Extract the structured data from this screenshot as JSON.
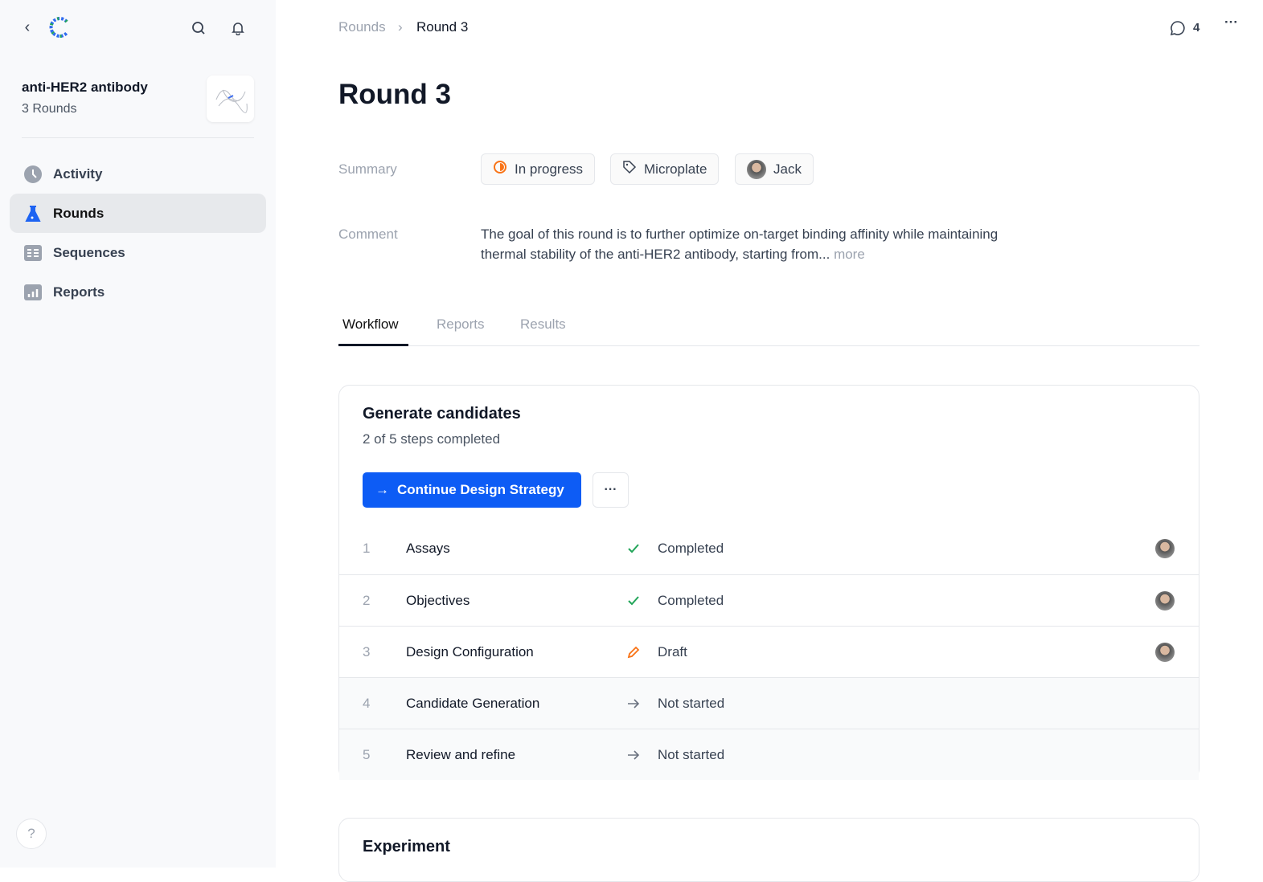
{
  "sidebar": {
    "project_title": "anti-HER2 antibody",
    "project_sub": "3 Rounds",
    "items": [
      {
        "label": "Activity",
        "icon": "clock-icon"
      },
      {
        "label": "Rounds",
        "icon": "flask-icon",
        "active": true
      },
      {
        "label": "Sequences",
        "icon": "table-icon"
      },
      {
        "label": "Reports",
        "icon": "bar-chart-icon"
      }
    ],
    "help": "?"
  },
  "breadcrumb": {
    "parent": "Rounds",
    "current": "Round 3"
  },
  "comments_count": "4",
  "title": "Round 3",
  "summary": {
    "label": "Summary",
    "status": "In progress",
    "tag": "Microplate",
    "owner": "Jack",
    "status_color": "#f97316"
  },
  "comment": {
    "label": "Comment",
    "text": "The goal of this round is to further optimize on-target binding affinity while maintaining thermal stability of the anti-HER2 antibody, starting from...",
    "more": "more"
  },
  "tabs": [
    "Workflow",
    "Reports",
    "Results"
  ],
  "workflow": {
    "title": "Generate candidates",
    "progress": "2 of 5 steps completed",
    "primary_button": "Continue Design Strategy",
    "accent": "#0d5cf5",
    "steps": [
      {
        "n": "1",
        "name": "Assays",
        "status": "Completed",
        "icon": "check-icon"
      },
      {
        "n": "2",
        "name": "Objectives",
        "status": "Completed",
        "icon": "check-icon"
      },
      {
        "n": "3",
        "name": "Design Configuration",
        "status": "Draft",
        "icon": "pencil-icon"
      },
      {
        "n": "4",
        "name": "Candidate Generation",
        "status": "Not started",
        "icon": "arrow-right-icon"
      },
      {
        "n": "5",
        "name": "Review and refine",
        "status": "Not started",
        "icon": "arrow-right-icon"
      }
    ]
  },
  "experiment": {
    "title": "Experiment"
  }
}
